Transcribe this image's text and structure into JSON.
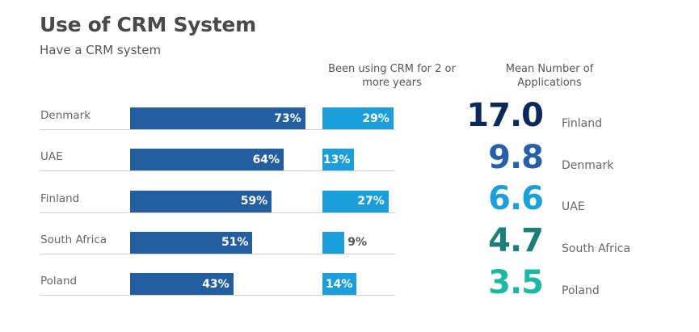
{
  "chart_data": {
    "title": "Use of CRM System",
    "subtitle": "Have a CRM system",
    "col2_header": "Been using CRM for 2 or more years",
    "col3_header": "Mean Number of Applications",
    "type": "bar",
    "categories": [
      "Denmark",
      "UAE",
      "Finland",
      "South Africa",
      "Poland"
    ],
    "series": [
      {
        "values": [
          73,
          64,
          59,
          51,
          43
        ],
        "labels": [
          "73%",
          "64%",
          "59%",
          "51%",
          "43%"
        ],
        "color": "#235fa0"
      },
      {
        "name": "Been using CRM for 2 or more years",
        "values": [
          29,
          13,
          27,
          9,
          14
        ],
        "labels": [
          "29%",
          "13%",
          "27%",
          "9%",
          "14%"
        ],
        "color": "#1a9fdc"
      }
    ],
    "ranking": {
      "name": "Mean Number of Applications",
      "items": [
        {
          "value": "17.0",
          "country": "Finland",
          "color": "#0b2a5b"
        },
        {
          "value": "9.8",
          "country": "Denmark",
          "color": "#2560a8"
        },
        {
          "value": "6.6",
          "country": "UAE",
          "color": "#1ba0dd"
        },
        {
          "value": "4.7",
          "country": "South Africa",
          "color": "#1a7f7a"
        },
        {
          "value": "3.5",
          "country": "Poland",
          "color": "#1bb8a6"
        }
      ]
    }
  }
}
